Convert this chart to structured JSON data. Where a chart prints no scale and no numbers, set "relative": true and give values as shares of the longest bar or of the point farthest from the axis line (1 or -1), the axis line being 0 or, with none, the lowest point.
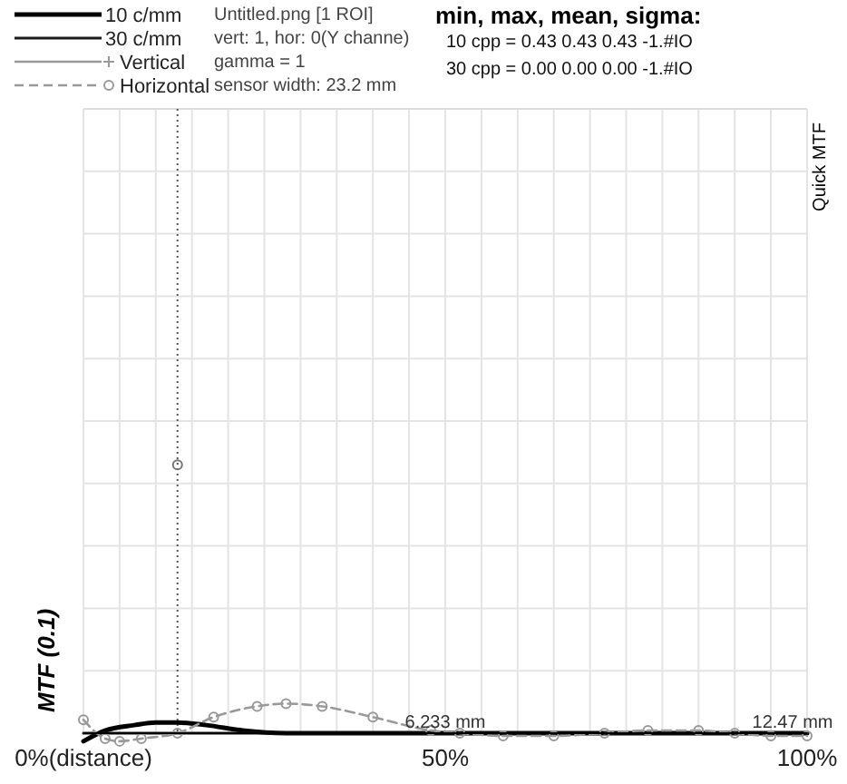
{
  "chart_data": {
    "type": "line",
    "title": "min, max, mean, sigma:",
    "ylabel": "MTF (0.1)",
    "relative": true,
    "xlim": [
      0,
      100
    ],
    "xticks": [
      {
        "value": 0,
        "label": "0%(distance)"
      },
      {
        "value": 5,
        "label": null
      },
      {
        "value": 10,
        "label": null
      },
      {
        "value": 15,
        "label": null
      },
      {
        "value": 20,
        "label": null
      },
      {
        "value": 25,
        "label": null
      },
      {
        "value": 30,
        "label": null
      },
      {
        "value": 35,
        "label": null
      },
      {
        "value": 40,
        "label": null
      },
      {
        "value": 45,
        "label": null
      },
      {
        "value": 50,
        "label": "50%"
      },
      {
        "value": 55,
        "label": null
      },
      {
        "value": 60,
        "label": null
      },
      {
        "value": 65,
        "label": null
      },
      {
        "value": 70,
        "label": null
      },
      {
        "value": 75,
        "label": null
      },
      {
        "value": 80,
        "label": null
      },
      {
        "value": 85,
        "label": null
      },
      {
        "value": 90,
        "label": null
      },
      {
        "value": 95,
        "label": null
      },
      {
        "value": 100,
        "label": "100%"
      }
    ],
    "grid": true,
    "legend": "top left",
    "ref_lines": [
      {
        "axis": "x",
        "value": 13,
        "line_style": "dotted",
        "color": "#555555"
      }
    ],
    "annotations": [
      "Untitled.png [1 ROI]",
      "vert: 1, hor: 0(Y channe)",
      "gamma = 1",
      "sensor width: 23.2 mm",
      "10 cpp = 0.43 0.43 0.43 -1.#IO",
      "30 cpp = 0.00 0.00 0.00 -1.#IO",
      "Quick MTF",
      {
        "text": "6.233 mm",
        "x": 50,
        "y": 0
      },
      {
        "text": "12.47 mm",
        "x": 100,
        "y": 0
      }
    ],
    "series": [
      {
        "name": "10 c/mm",
        "color": "#000000",
        "line_style": "solid",
        "marker": "none",
        "x": [
          0,
          3,
          7,
          10,
          13,
          17,
          22,
          28,
          40,
          60,
          80,
          100
        ],
        "values": [
          -0.03,
          0.01,
          0.03,
          0.04,
          0.04,
          0.03,
          0.01,
          0,
          0,
          0,
          0,
          0
        ]
      },
      {
        "name": "30 c/mm",
        "color": "#1a1a1a",
        "line_style": "solid",
        "marker": "none",
        "x": [
          0,
          25,
          50,
          75,
          100
        ],
        "values": [
          0,
          0,
          0,
          0,
          0
        ]
      },
      {
        "name": "Vertical",
        "color": "#999999",
        "line_style": "solid",
        "marker": "cross"
      },
      {
        "name": "Horizontal",
        "color": "#999999",
        "line_style": "dashed",
        "marker": "circle",
        "x": [
          0,
          3,
          5,
          8,
          13,
          18,
          24,
          28,
          33,
          40,
          48,
          52,
          58,
          65,
          72,
          78,
          85,
          90,
          95,
          100
        ],
        "values": [
          0.05,
          -0.02,
          -0.03,
          -0.02,
          0,
          0.06,
          0.1,
          0.11,
          0.1,
          0.06,
          0.01,
          0,
          -0.01,
          -0.01,
          0,
          0.01,
          0.01,
          0,
          -0.01,
          -0.01
        ]
      },
      {
        "type": "scatter",
        "color": "#777777",
        "marker": "circle",
        "x": [
          13
        ],
        "values": [
          1
        ]
      }
    ]
  }
}
